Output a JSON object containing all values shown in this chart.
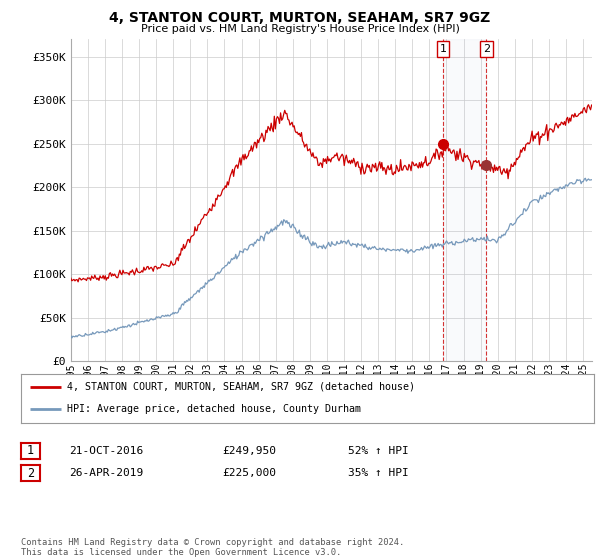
{
  "title": "4, STANTON COURT, MURTON, SEAHAM, SR7 9GZ",
  "subtitle": "Price paid vs. HM Land Registry's House Price Index (HPI)",
  "ylabel_ticks": [
    "£0",
    "£50K",
    "£100K",
    "£150K",
    "£200K",
    "£250K",
    "£300K",
    "£350K"
  ],
  "ytick_values": [
    0,
    50000,
    100000,
    150000,
    200000,
    250000,
    300000,
    350000
  ],
  "ylim": [
    0,
    370000
  ],
  "xlim_start": 1995.5,
  "xlim_end": 2025.5,
  "transaction1": {
    "date_num": 2016.81,
    "price": 249950,
    "label": "1"
  },
  "transaction2": {
    "date_num": 2019.33,
    "price": 225000,
    "label": "2"
  },
  "legend_line1": "4, STANTON COURT, MURTON, SEAHAM, SR7 9GZ (detached house)",
  "legend_line2": "HPI: Average price, detached house, County Durham",
  "table_row1": [
    "1",
    "21-OCT-2016",
    "£249,950",
    "52% ↑ HPI"
  ],
  "table_row2": [
    "2",
    "26-APR-2019",
    "£225,000",
    "35% ↑ HPI"
  ],
  "footer": "Contains HM Land Registry data © Crown copyright and database right 2024.\nThis data is licensed under the Open Government Licence v3.0.",
  "color_red": "#cc0000",
  "color_blue": "#7799bb",
  "background_color": "#ffffff",
  "grid_color": "#cccccc",
  "xtick_years": [
    1995,
    1996,
    1997,
    1998,
    1999,
    2000,
    2001,
    2002,
    2003,
    2004,
    2005,
    2006,
    2007,
    2008,
    2009,
    2010,
    2011,
    2012,
    2013,
    2014,
    2015,
    2016,
    2017,
    2018,
    2019,
    2020,
    2021,
    2022,
    2023,
    2024,
    2025
  ]
}
